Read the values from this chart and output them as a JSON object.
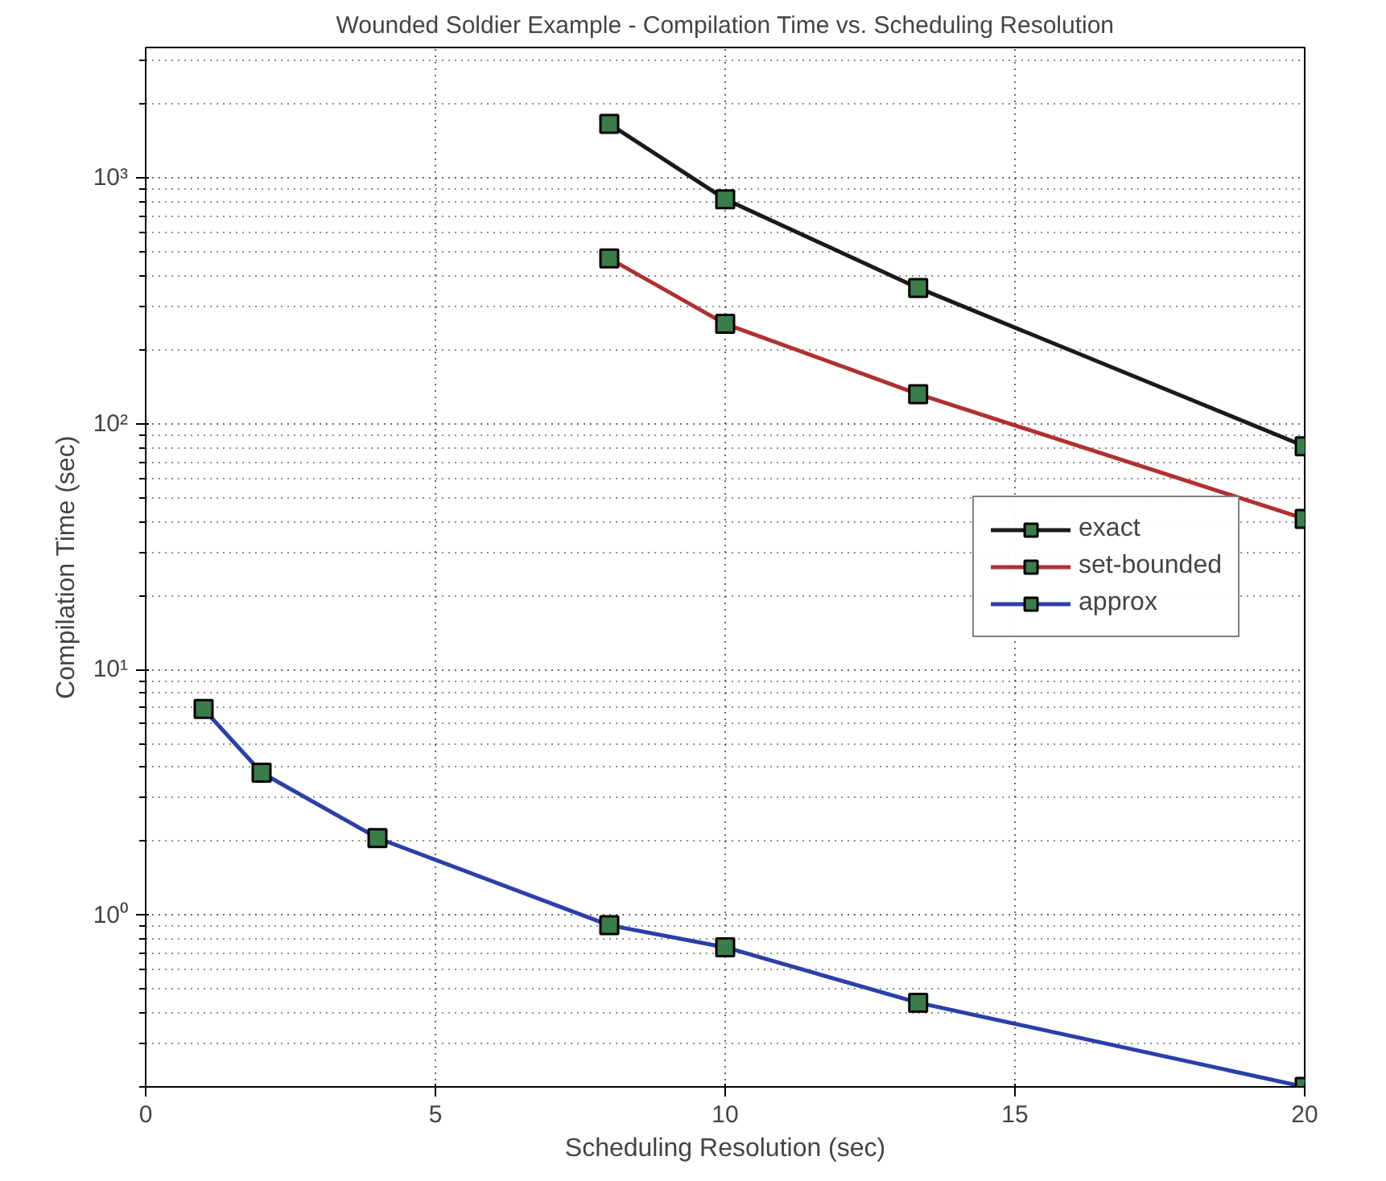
{
  "chart_data": {
    "type": "line",
    "title": "Wounded Soldier Example - Compilation Time vs. Scheduling Resolution",
    "xlabel": "Scheduling Resolution (sec)",
    "ylabel": "Compilation Time (sec)",
    "log": "y",
    "grid": true,
    "legend": "right",
    "marker": "square",
    "line_style": "solid",
    "xlim": [
      0,
      20
    ],
    "xticks": [
      0,
      5,
      10,
      15,
      20
    ],
    "ylim": [
      0.2,
      3400
    ],
    "yticks": [
      {
        "value": 1,
        "label": "10⁰"
      },
      {
        "value": 10,
        "label": "10¹"
      },
      {
        "value": 100,
        "label": "10²"
      },
      {
        "value": 1000,
        "label": "10³"
      }
    ],
    "series": [
      {
        "name": "exact",
        "color": "#1a1a1a",
        "x": [
          8,
          10,
          13.33,
          20
        ],
        "values": [
          1660,
          820,
          357,
          81
        ]
      },
      {
        "name": "set-bounded",
        "color": "#b03030",
        "x": [
          8,
          10,
          13.33,
          20
        ],
        "values": [
          471,
          255,
          132,
          41
        ]
      },
      {
        "name": "approx",
        "color": "#2b3fa8",
        "x": [
          1,
          2,
          4,
          8,
          10,
          13.33,
          20
        ],
        "values": [
          6.9,
          3.8,
          2.06,
          0.91,
          0.74,
          0.44,
          0.2
        ]
      }
    ]
  }
}
